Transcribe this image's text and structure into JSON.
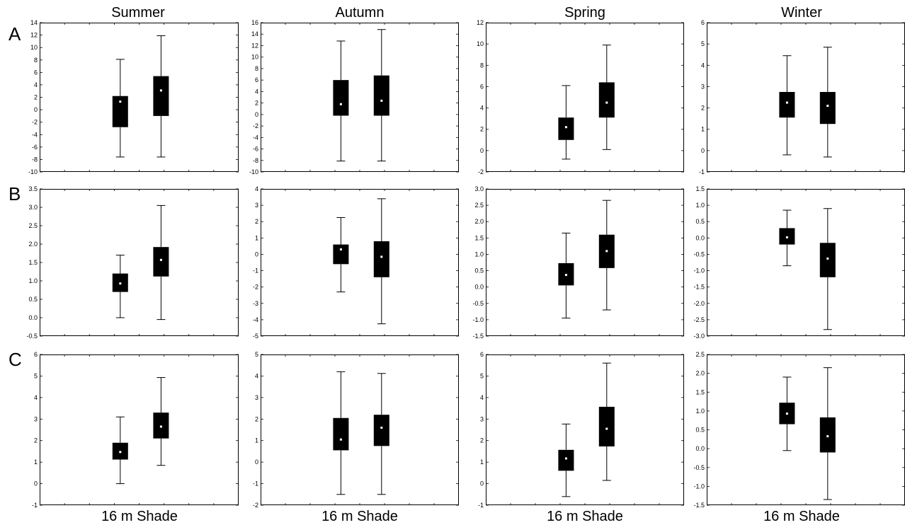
{
  "figure": {
    "column_titles": [
      "Summer",
      "Autumn",
      "Spring",
      "Winter"
    ],
    "row_labels": [
      "A",
      "B",
      "C"
    ],
    "bottom_labels": [
      "16 m Shade",
      "16 m Shade",
      "16 m Shade",
      "16 m Shade"
    ]
  },
  "style": {
    "box_color": "#000000",
    "median_marker_color": "#ffffff",
    "background": "#ffffff"
  },
  "chart_data": [
    {
      "type": "box",
      "row": "A",
      "season": "Summer",
      "ylim": [
        -10,
        14
      ],
      "yticks": [
        -10,
        -8,
        -6,
        -4,
        -2,
        0,
        2,
        4,
        6,
        8,
        10,
        12,
        14
      ],
      "ytick_labels": [
        "-10",
        "-8",
        "-6",
        "-4",
        "-2",
        "0",
        "2",
        "4",
        "6",
        "8",
        "10",
        "12",
        "14"
      ],
      "boxes": [
        {
          "min": -7.6,
          "q1": -2.8,
          "median": 1.3,
          "q3": 2.2,
          "max": 8.1
        },
        {
          "min": -7.6,
          "q1": -1.0,
          "median": 3.1,
          "q3": 5.4,
          "max": 11.9
        }
      ]
    },
    {
      "type": "box",
      "row": "A",
      "season": "Autumn",
      "ylim": [
        -10,
        16
      ],
      "yticks": [
        -10,
        -8,
        -6,
        -4,
        -2,
        0,
        2,
        4,
        6,
        8,
        10,
        12,
        14,
        16
      ],
      "ytick_labels": [
        "-10",
        "-8",
        "-6",
        "-4",
        "-2",
        "0",
        "2",
        "4",
        "6",
        "8",
        "10",
        "12",
        "14",
        "16"
      ],
      "boxes": [
        {
          "min": -8.1,
          "q1": -0.2,
          "median": 1.8,
          "q3": 6.0,
          "max": 12.8
        },
        {
          "min": -8.1,
          "q1": -0.2,
          "median": 2.4,
          "q3": 6.8,
          "max": 14.8
        }
      ]
    },
    {
      "type": "box",
      "row": "A",
      "season": "Spring",
      "ylim": [
        -2,
        12
      ],
      "yticks": [
        -2,
        0,
        2,
        4,
        6,
        8,
        10,
        12
      ],
      "ytick_labels": [
        "-2",
        "0",
        "2",
        "4",
        "6",
        "8",
        "10",
        "12"
      ],
      "boxes": [
        {
          "min": -0.8,
          "q1": 1.0,
          "median": 2.2,
          "q3": 3.1,
          "max": 6.1
        },
        {
          "min": 0.1,
          "q1": 3.1,
          "median": 4.5,
          "q3": 6.4,
          "max": 9.9
        }
      ]
    },
    {
      "type": "box",
      "row": "A",
      "season": "Winter",
      "ylim": [
        -1,
        6
      ],
      "yticks": [
        -1,
        0,
        1,
        2,
        3,
        4,
        5,
        6
      ],
      "ytick_labels": [
        "-1",
        "0",
        "1",
        "2",
        "3",
        "4",
        "5",
        "6"
      ],
      "boxes": [
        {
          "min": -0.2,
          "q1": 1.55,
          "median": 2.25,
          "q3": 2.75,
          "max": 4.45
        },
        {
          "min": -0.3,
          "q1": 1.25,
          "median": 2.1,
          "q3": 2.75,
          "max": 4.85
        }
      ]
    },
    {
      "type": "box",
      "row": "B",
      "season": "Summer",
      "ylim": [
        -0.5,
        3.5
      ],
      "yticks": [
        -0.5,
        0,
        0.5,
        1,
        1.5,
        2,
        2.5,
        3,
        3.5
      ],
      "ytick_labels": [
        "-0.5",
        "0.0",
        "0.5",
        "1.0",
        "1.5",
        "2.0",
        "2.5",
        "3.0",
        "3.5"
      ],
      "boxes": [
        {
          "min": 0.0,
          "q1": 0.7,
          "median": 0.93,
          "q3": 1.2,
          "max": 1.7
        },
        {
          "min": -0.05,
          "q1": 1.12,
          "median": 1.57,
          "q3": 1.92,
          "max": 3.05
        }
      ]
    },
    {
      "type": "box",
      "row": "B",
      "season": "Autumn",
      "ylim": [
        -5,
        4
      ],
      "yticks": [
        -5,
        -4,
        -3,
        -2,
        -1,
        0,
        1,
        2,
        3,
        4
      ],
      "ytick_labels": [
        "-5",
        "-4",
        "-3",
        "-2",
        "-1",
        "0",
        "1",
        "2",
        "3",
        "4"
      ],
      "boxes": [
        {
          "min": -2.3,
          "q1": -0.6,
          "median": 0.3,
          "q3": 0.6,
          "max": 2.25
        },
        {
          "min": -4.25,
          "q1": -1.4,
          "median": -0.15,
          "q3": 0.8,
          "max": 3.4
        }
      ]
    },
    {
      "type": "box",
      "row": "B",
      "season": "Spring",
      "ylim": [
        -1.5,
        3
      ],
      "yticks": [
        -1.5,
        -1,
        -0.5,
        0,
        0.5,
        1,
        1.5,
        2,
        2.5,
        3
      ],
      "ytick_labels": [
        "-1.5",
        "-1.0",
        "-0.5",
        "0.0",
        "0.5",
        "1.0",
        "1.5",
        "2.0",
        "2.5",
        "3.0"
      ],
      "boxes": [
        {
          "min": -0.95,
          "q1": 0.05,
          "median": 0.37,
          "q3": 0.73,
          "max": 1.65
        },
        {
          "min": -0.7,
          "q1": 0.58,
          "median": 1.1,
          "q3": 1.6,
          "max": 2.65
        }
      ]
    },
    {
      "type": "box",
      "row": "B",
      "season": "Winter",
      "ylim": [
        -3,
        1.5
      ],
      "yticks": [
        -3,
        -2.5,
        -2,
        -1.5,
        -1,
        -0.5,
        0,
        0.5,
        1,
        1.5
      ],
      "ytick_labels": [
        "-3.0",
        "-2.5",
        "-2.0",
        "-1.5",
        "-1.0",
        "-0.5",
        "0.0",
        "0.5",
        "1.0",
        "1.5"
      ],
      "boxes": [
        {
          "min": -0.85,
          "q1": -0.2,
          "median": 0.02,
          "q3": 0.3,
          "max": 0.85
        },
        {
          "min": -2.8,
          "q1": -1.2,
          "median": -0.63,
          "q3": -0.15,
          "max": 0.9
        }
      ]
    },
    {
      "type": "box",
      "row": "C",
      "season": "Summer",
      "ylim": [
        -1,
        6
      ],
      "yticks": [
        -1,
        0,
        1,
        2,
        3,
        4,
        5,
        6
      ],
      "ytick_labels": [
        "-1",
        "0",
        "1",
        "2",
        "3",
        "4",
        "5",
        "6"
      ],
      "boxes": [
        {
          "min": 0.0,
          "q1": 1.12,
          "median": 1.47,
          "q3": 1.9,
          "max": 3.1
        },
        {
          "min": 0.85,
          "q1": 2.1,
          "median": 2.65,
          "q3": 3.3,
          "max": 4.93
        }
      ]
    },
    {
      "type": "box",
      "row": "C",
      "season": "Autumn",
      "ylim": [
        -2,
        5
      ],
      "yticks": [
        -2,
        -1,
        0,
        1,
        2,
        3,
        4,
        5
      ],
      "ytick_labels": [
        "-2",
        "-1",
        "0",
        "1",
        "2",
        "3",
        "4",
        "5"
      ],
      "boxes": [
        {
          "min": -1.5,
          "q1": 0.55,
          "median": 1.05,
          "q3": 2.05,
          "max": 4.2
        },
        {
          "min": -1.5,
          "q1": 0.75,
          "median": 1.6,
          "q3": 2.2,
          "max": 4.12
        }
      ]
    },
    {
      "type": "box",
      "row": "C",
      "season": "Spring",
      "ylim": [
        -1,
        6
      ],
      "yticks": [
        -1,
        0,
        1,
        2,
        3,
        4,
        5,
        6
      ],
      "ytick_labels": [
        "-1",
        "0",
        "1",
        "2",
        "3",
        "4",
        "5",
        "6"
      ],
      "boxes": [
        {
          "min": -0.6,
          "q1": 0.6,
          "median": 1.17,
          "q3": 1.57,
          "max": 2.77
        },
        {
          "min": 0.15,
          "q1": 1.73,
          "median": 2.55,
          "q3": 3.57,
          "max": 5.6
        }
      ]
    },
    {
      "type": "box",
      "row": "C",
      "season": "Winter",
      "ylim": [
        -1.5,
        2.5
      ],
      "yticks": [
        -1.5,
        -1,
        -0.5,
        0,
        0.5,
        1,
        1.5,
        2,
        2.5
      ],
      "ytick_labels": [
        "-1.5",
        "-1.0",
        "-0.5",
        "0.0",
        "0.5",
        "1.0",
        "1.5",
        "2.0",
        "2.5"
      ],
      "boxes": [
        {
          "min": -0.05,
          "q1": 0.65,
          "median": 0.93,
          "q3": 1.22,
          "max": 1.9
        },
        {
          "min": -1.35,
          "q1": -0.1,
          "median": 0.33,
          "q3": 0.83,
          "max": 2.15
        }
      ]
    }
  ]
}
